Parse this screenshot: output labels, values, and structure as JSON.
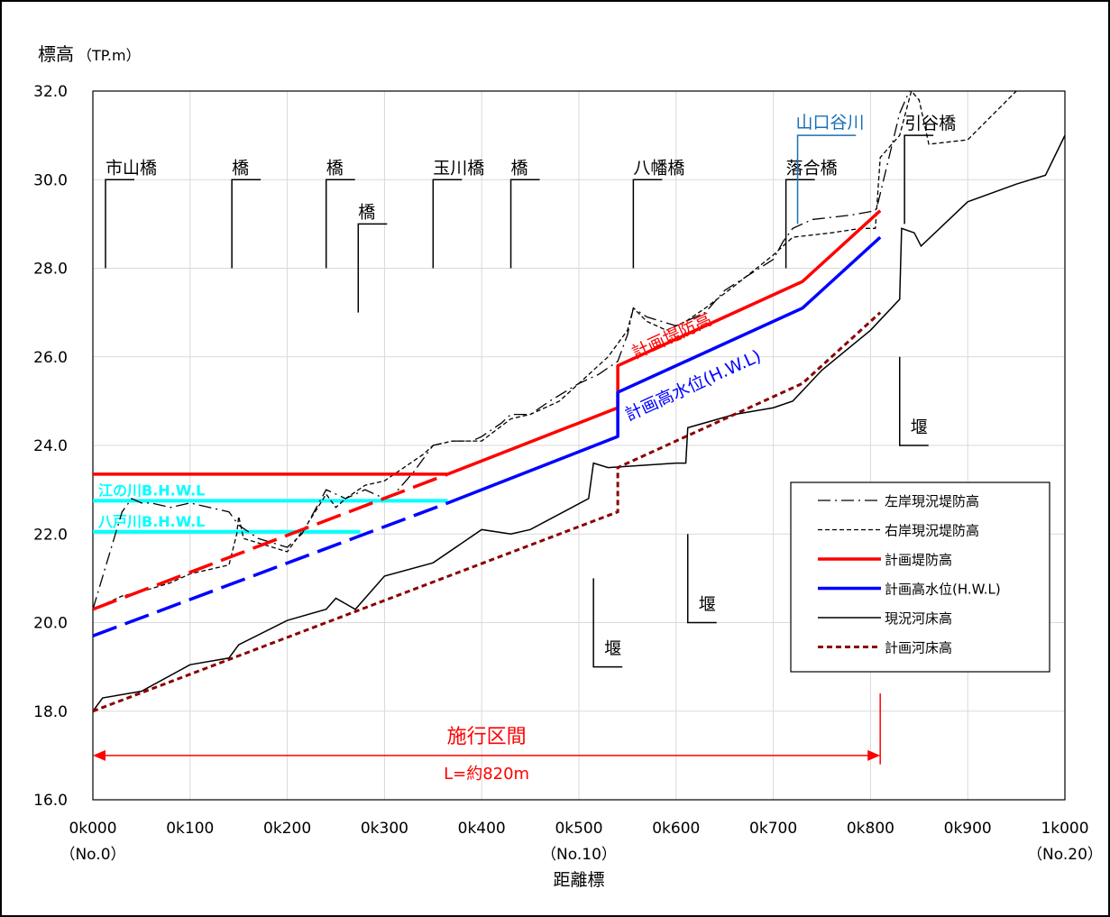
{
  "chart_data": {
    "type": "line",
    "ylabel": "標高",
    "ylabel_unit": "（TP.m）",
    "xlabel": "距離標",
    "ylim": [
      16,
      32
    ],
    "xlim": [
      0,
      1000
    ],
    "y_ticks": [
      "16.0",
      "18.0",
      "20.0",
      "22.0",
      "24.0",
      "26.0",
      "28.0",
      "30.0",
      "32.0"
    ],
    "x_ticks": [
      {
        "label": "0k000",
        "sub": "（No.0）"
      },
      {
        "label": "0k100",
        "sub": ""
      },
      {
        "label": "0k200",
        "sub": ""
      },
      {
        "label": "0k300",
        "sub": ""
      },
      {
        "label": "0k400",
        "sub": ""
      },
      {
        "label": "0k500",
        "sub": "（No.10）"
      },
      {
        "label": "0k600",
        "sub": ""
      },
      {
        "label": "0k700",
        "sub": ""
      },
      {
        "label": "0k800",
        "sub": ""
      },
      {
        "label": "0k900",
        "sub": ""
      },
      {
        "label": "1k000",
        "sub": "（No.20）"
      }
    ],
    "grid": true,
    "legend_position": "right",
    "series": [
      {
        "name": "左岸現況堤防高",
        "style": "dashdot",
        "color": "#000000",
        "points": [
          [
            0,
            20.3
          ],
          [
            30,
            22.5
          ],
          [
            40,
            22.8
          ],
          [
            50,
            22.7
          ],
          [
            60,
            22.7
          ],
          [
            80,
            22.6
          ],
          [
            100,
            22.7
          ],
          [
            120,
            22.6
          ],
          [
            140,
            22.5
          ],
          [
            150,
            22.2
          ],
          [
            170,
            21.9
          ],
          [
            185,
            21.8
          ],
          [
            200,
            21.7
          ],
          [
            215,
            22.0
          ],
          [
            230,
            22.6
          ],
          [
            240,
            23.0
          ],
          [
            260,
            22.8
          ],
          [
            280,
            23.0
          ],
          [
            300,
            22.8
          ],
          [
            310,
            22.9
          ],
          [
            330,
            23.4
          ],
          [
            350,
            24.0
          ],
          [
            370,
            24.1
          ],
          [
            390,
            24.1
          ],
          [
            400,
            24.2
          ],
          [
            420,
            24.5
          ],
          [
            430,
            24.7
          ],
          [
            450,
            24.7
          ],
          [
            470,
            25.0
          ],
          [
            500,
            25.4
          ],
          [
            520,
            25.6
          ],
          [
            540,
            25.9
          ],
          [
            550,
            26.5
          ],
          [
            556,
            27.1
          ],
          [
            570,
            26.9
          ],
          [
            600,
            26.7
          ],
          [
            630,
            27.0
          ],
          [
            650,
            27.5
          ],
          [
            700,
            28.2
          ],
          [
            710,
            28.6
          ],
          [
            720,
            28.9
          ],
          [
            740,
            29.1
          ],
          [
            780,
            29.2
          ],
          [
            805,
            29.3
          ],
          [
            808,
            29.5
          ],
          [
            830,
            31.5
          ],
          [
            840,
            32.0
          ]
        ]
      },
      {
        "name": "右岸現況堤防高",
        "style": "dash",
        "color": "#000000",
        "points": [
          [
            0,
            20.3
          ],
          [
            30,
            20.6
          ],
          [
            50,
            20.7
          ],
          [
            80,
            20.9
          ],
          [
            100,
            21.1
          ],
          [
            140,
            21.3
          ],
          [
            148,
            22.0
          ],
          [
            150,
            22.4
          ],
          [
            155,
            21.9
          ],
          [
            170,
            21.8
          ],
          [
            200,
            21.6
          ],
          [
            220,
            22.2
          ],
          [
            240,
            22.9
          ],
          [
            250,
            22.6
          ],
          [
            260,
            22.8
          ],
          [
            280,
            23.1
          ],
          [
            300,
            23.2
          ],
          [
            320,
            23.5
          ],
          [
            340,
            23.8
          ],
          [
            350,
            24.0
          ],
          [
            370,
            24.1
          ],
          [
            400,
            24.1
          ],
          [
            430,
            24.6
          ],
          [
            450,
            24.7
          ],
          [
            480,
            25.0
          ],
          [
            500,
            25.4
          ],
          [
            530,
            26.0
          ],
          [
            550,
            26.6
          ],
          [
            556,
            27.1
          ],
          [
            570,
            26.8
          ],
          [
            590,
            26.6
          ],
          [
            610,
            26.8
          ],
          [
            630,
            27.1
          ],
          [
            660,
            27.6
          ],
          [
            700,
            28.3
          ],
          [
            720,
            28.7
          ],
          [
            760,
            28.8
          ],
          [
            790,
            28.9
          ],
          [
            805,
            28.9
          ],
          [
            810,
            30.5
          ],
          [
            830,
            31.0
          ],
          [
            842,
            32.0
          ],
          [
            850,
            31.8
          ],
          [
            860,
            30.8
          ],
          [
            900,
            30.9
          ],
          [
            950,
            32.0
          ]
        ]
      },
      {
        "name": "計画堤防高",
        "style": "solid",
        "color": "#ff0000",
        "points": [
          [
            0,
            20.3
          ],
          [
            365,
            23.35
          ],
          [
            540,
            24.85
          ],
          [
            540,
            25.8
          ],
          [
            730,
            27.7
          ],
          [
            810,
            29.3
          ]
        ]
      },
      {
        "name": "計画高水位(H.W.L)",
        "style": "solid",
        "color": "#0000ff",
        "points": [
          [
            0,
            19.7
          ],
          [
            365,
            22.7
          ],
          [
            540,
            24.2
          ],
          [
            540,
            25.2
          ],
          [
            730,
            27.1
          ],
          [
            810,
            28.7
          ]
        ]
      },
      {
        "name": "現況河床高",
        "style": "solid",
        "color": "#000000",
        "points": [
          [
            0,
            18.0
          ],
          [
            10,
            18.3
          ],
          [
            50,
            18.45
          ],
          [
            100,
            19.05
          ],
          [
            140,
            19.2
          ],
          [
            150,
            19.5
          ],
          [
            200,
            20.05
          ],
          [
            240,
            20.3
          ],
          [
            250,
            20.55
          ],
          [
            270,
            20.3
          ],
          [
            300,
            21.05
          ],
          [
            350,
            21.35
          ],
          [
            400,
            22.1
          ],
          [
            430,
            22.0
          ],
          [
            450,
            22.1
          ],
          [
            510,
            22.8
          ],
          [
            515,
            23.6
          ],
          [
            530,
            23.5
          ],
          [
            600,
            23.6
          ],
          [
            610,
            23.6
          ],
          [
            612,
            24.4
          ],
          [
            660,
            24.7
          ],
          [
            700,
            24.85
          ],
          [
            720,
            25.0
          ],
          [
            750,
            25.7
          ],
          [
            800,
            26.6
          ],
          [
            830,
            27.3
          ],
          [
            832,
            28.9
          ],
          [
            845,
            28.8
          ],
          [
            852,
            28.5
          ],
          [
            900,
            29.5
          ],
          [
            950,
            29.9
          ],
          [
            980,
            30.1
          ],
          [
            1000,
            31.0
          ]
        ]
      },
      {
        "name": "計画河床高",
        "style": "dotted",
        "color": "#8b0000",
        "points": [
          [
            0,
            18.0
          ],
          [
            540,
            22.5
          ],
          [
            540,
            23.5
          ],
          [
            730,
            25.4
          ],
          [
            810,
            27.0
          ]
        ]
      }
    ],
    "reference_lines": [
      {
        "label": "江の川B.H.W.L",
        "y": 22.75,
        "x_end": 365,
        "color": "#00ffff"
      },
      {
        "label": "八戸川B.H.W.L",
        "y": 22.05,
        "x_end": 275,
        "color": "#00ffff"
      }
    ],
    "bridges": [
      {
        "label": "市山橋",
        "x": 13,
        "y_base": 28.0,
        "y_top": 30.0
      },
      {
        "label": "橋",
        "x": 143,
        "y_base": 28.0,
        "y_top": 30.0
      },
      {
        "label": "橋",
        "x": 240,
        "y_base": 28.0,
        "y_top": 30.0
      },
      {
        "label": "橋",
        "x": 273,
        "y_base": 27.0,
        "y_top": 29.0
      },
      {
        "label": "玉川橋",
        "x": 350,
        "y_base": 28.0,
        "y_top": 30.0
      },
      {
        "label": "橋",
        "x": 430,
        "y_base": 28.0,
        "y_top": 30.0
      },
      {
        "label": "八幡橋",
        "x": 556,
        "y_base": 28.0,
        "y_top": 30.0
      },
      {
        "label": "落合橋",
        "x": 713,
        "y_base": 28.0,
        "y_top": 30.0
      },
      {
        "label": "引谷橋",
        "x": 835,
        "y_base": 29.0,
        "y_top": 31.0
      }
    ],
    "weirs": [
      {
        "label": "堰",
        "x": 515,
        "y_top": 21.0,
        "y_base": 19.0
      },
      {
        "label": "堰",
        "x": 612,
        "y_top": 22.0,
        "y_base": 20.0
      },
      {
        "label": "堰",
        "x": 830,
        "y_top": 26.0,
        "y_base": 24.0
      }
    ],
    "annotations": {
      "yamaguchi": {
        "label": "山口谷川",
        "x": 725,
        "y_top": 31.0,
        "y_base": 29.0
      },
      "span_label": "施行区間",
      "span_length": "L=約820m",
      "span_x": [
        0,
        810
      ],
      "span_y": 17.0,
      "plan_levee_label": "計画堤防高",
      "plan_hwl_label": "計画高水位(H.W.L)"
    }
  }
}
